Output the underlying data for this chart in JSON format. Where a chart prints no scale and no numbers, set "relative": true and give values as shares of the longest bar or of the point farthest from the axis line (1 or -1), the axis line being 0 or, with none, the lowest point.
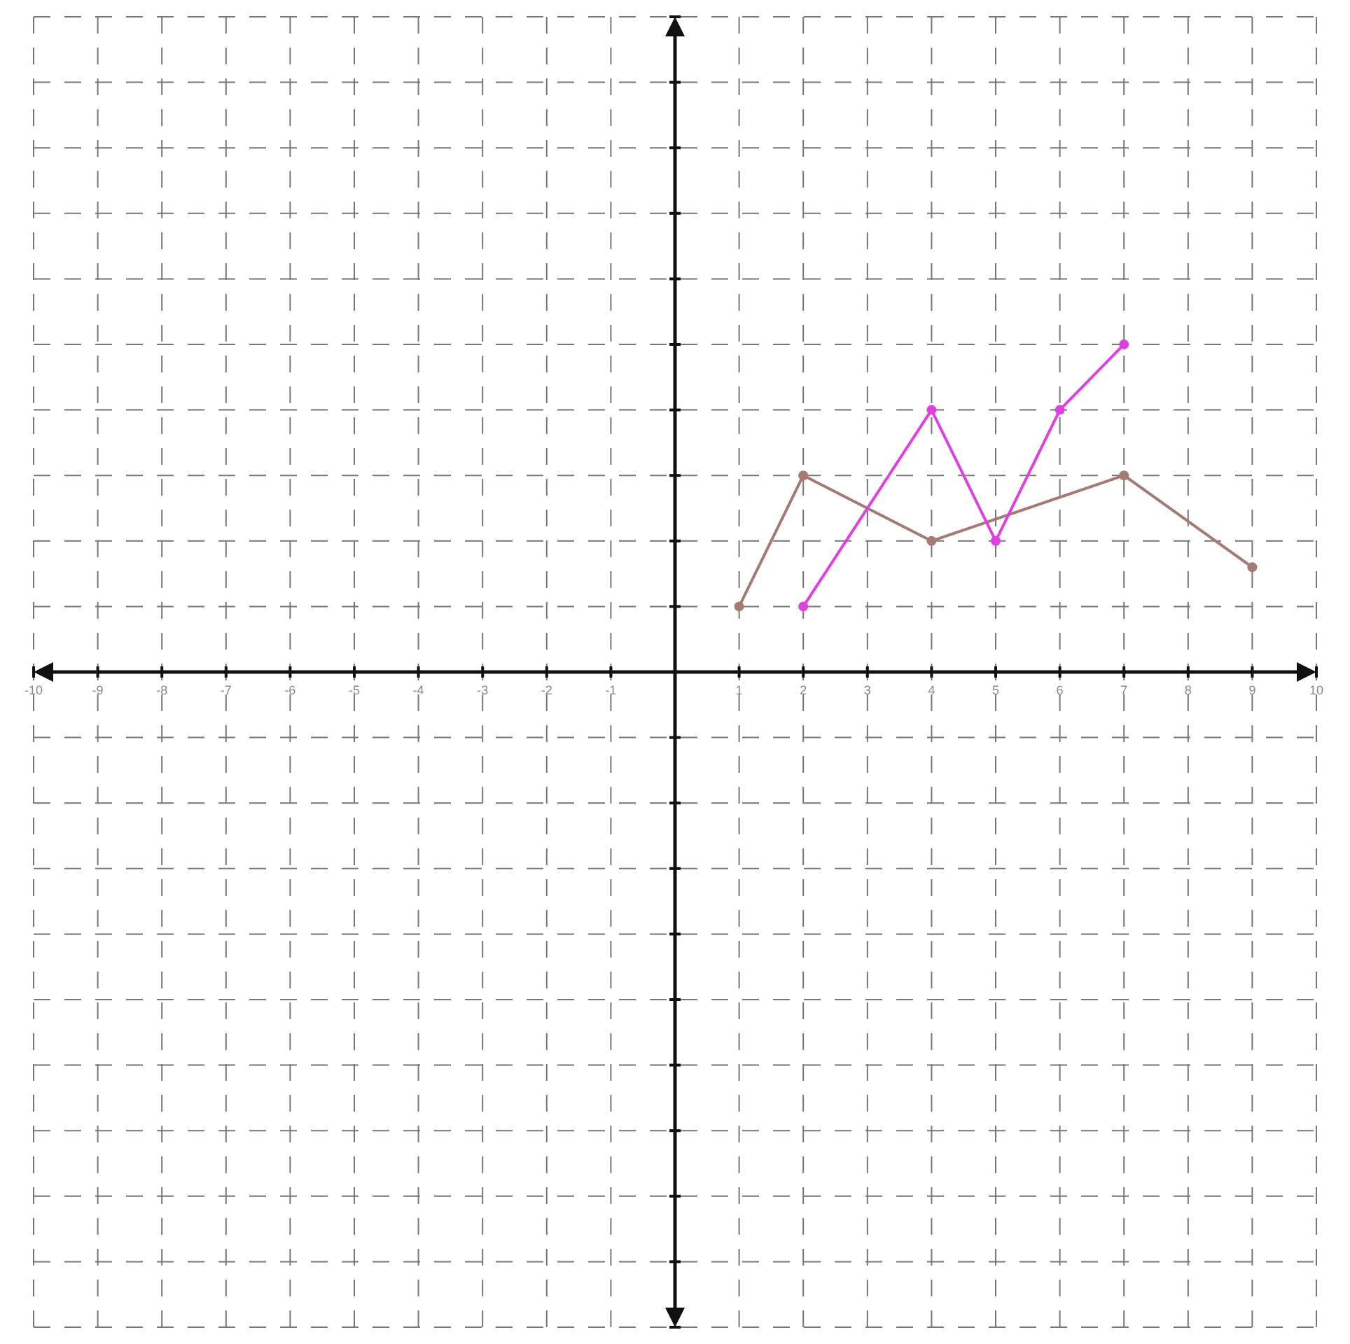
{
  "chart_data": {
    "type": "line",
    "relative": true,
    "xlim": [
      -10,
      10
    ],
    "xticks": [
      -10,
      -9,
      -8,
      -7,
      -6,
      -5,
      -4,
      -3,
      -2,
      -1,
      1,
      2,
      3,
      4,
      5,
      6,
      7,
      8,
      9,
      10
    ],
    "grid": true,
    "marker": "circle",
    "line_style": "solid",
    "tick_labels": "x",
    "series": [
      {
        "color": "#a47a72",
        "x": [
          1,
          2,
          4,
          7,
          9
        ],
        "values": [
          0.2,
          0.6,
          0.4,
          0.6,
          0.32
        ]
      },
      {
        "color": "#e040e0",
        "x": [
          2,
          4,
          5,
          6,
          7
        ],
        "values": [
          0.2,
          0.8,
          0.4,
          0.8,
          1
        ]
      }
    ]
  }
}
